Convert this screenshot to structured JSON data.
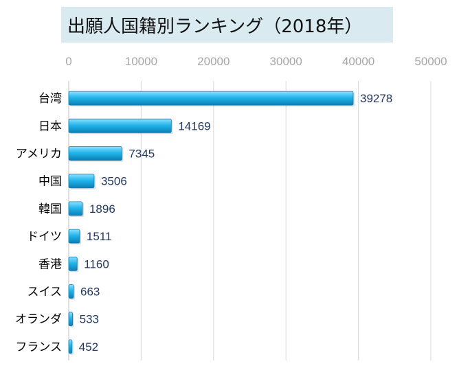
{
  "chart_data": {
    "type": "bar",
    "orientation": "horizontal",
    "title": "出願人国籍別ランキング（2018年）",
    "categories": [
      "台湾",
      "日本",
      "アメリカ",
      "中国",
      "韓国",
      "ドイツ",
      "香港",
      "スイス",
      "オランダ",
      "フランス"
    ],
    "values": [
      39278,
      14169,
      7345,
      3506,
      1896,
      1511,
      1160,
      663,
      533,
      452
    ],
    "xlim": [
      0,
      50000
    ],
    "xticks": [
      0,
      10000,
      20000,
      30000,
      40000,
      50000
    ],
    "xaxis_position": "top",
    "grid": true,
    "data_labels": true,
    "legend": "none",
    "colors": {
      "bar": "#22b6ec",
      "bar_light": "#8fe0ff",
      "bar_dark": "#0a7fb4",
      "label": "#1f3864",
      "tick": "#a6a6a6",
      "grid": "#d9d9d9",
      "title_bg": "#d9ebf1"
    }
  }
}
